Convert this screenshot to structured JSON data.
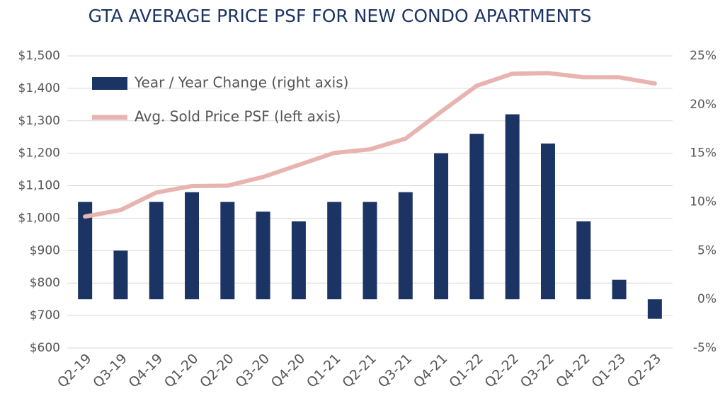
{
  "chart_data": {
    "type": "bar_line",
    "title": "GTA AVERAGE PRICE PSF FOR NEW CONDO APARTMENTS",
    "categories": [
      "Q2-19",
      "Q3-19",
      "Q4-19",
      "Q1-20",
      "Q2-20",
      "Q3-20",
      "Q4-20",
      "Q1-21",
      "Q2-21",
      "Q3-21",
      "Q4-21",
      "Q1-22",
      "Q2-22",
      "Q3-22",
      "Q4-22",
      "Q1-23",
      "Q2-23"
    ],
    "series": [
      {
        "name": "Year / Year Change (right axis)",
        "type": "bar",
        "axis": "y2",
        "color": "#1c3464",
        "values": [
          10,
          5,
          10,
          11,
          10,
          9,
          8,
          10,
          10,
          11,
          15,
          17,
          19,
          16,
          8,
          2,
          -2
        ]
      },
      {
        "name": "Avg. Sold Price PSF (left axis)",
        "type": "line",
        "axis": "y",
        "color": "#e8b4b0",
        "values": [
          1005,
          1025,
          1079,
          1099,
          1100,
          1127,
          1164,
          1201,
          1212,
          1245,
          1328,
          1408,
          1445,
          1447,
          1434,
          1434,
          1415
        ]
      }
    ],
    "ylim": [
      600,
      1500
    ],
    "yticks": [
      {
        "value": 600,
        "label": "$600"
      },
      {
        "value": 700,
        "label": "$700"
      },
      {
        "value": 800,
        "label": "$800"
      },
      {
        "value": 900,
        "label": "$900"
      },
      {
        "value": 1000,
        "label": "$1,000"
      },
      {
        "value": 1100,
        "label": "$1,100"
      },
      {
        "value": 1200,
        "label": "$1,200"
      },
      {
        "value": 1300,
        "label": "$1,300"
      },
      {
        "value": 1400,
        "label": "$1,400"
      },
      {
        "value": 1500,
        "label": "$1,500"
      }
    ],
    "y2lim": [
      -5,
      25
    ],
    "y2ticks": [
      {
        "value": -5,
        "label": "-5%"
      },
      {
        "value": 0,
        "label": "0%"
      },
      {
        "value": 5,
        "label": "5%"
      },
      {
        "value": 10,
        "label": "10%"
      },
      {
        "value": 15,
        "label": "15%"
      },
      {
        "value": 20,
        "label": "20%"
      },
      {
        "value": 25,
        "label": "25%"
      }
    ],
    "grid": true
  }
}
